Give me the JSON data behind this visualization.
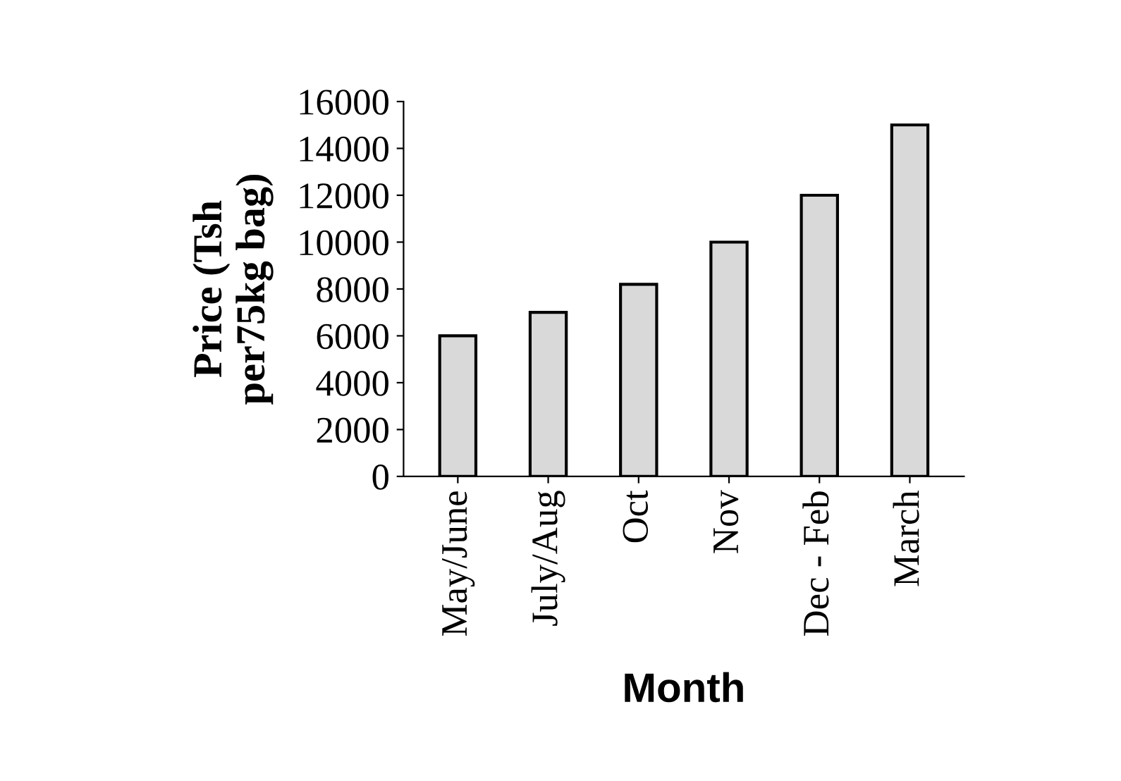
{
  "chart_data": {
    "type": "bar",
    "categories": [
      "May/June",
      "July/Aug",
      "Oct",
      "Nov",
      "Dec - Feb",
      "March"
    ],
    "values": [
      6000,
      7000,
      8200,
      10000,
      12000,
      15000
    ],
    "color": "#d9d9d9",
    "xlabel": "Month",
    "ylabel": "Price (Tsh\nper75kg bag)",
    "ylim": [
      0,
      16000
    ],
    "yticks": [
      0,
      2000,
      4000,
      6000,
      8000,
      10000,
      12000,
      14000,
      16000
    ],
    "grid": false,
    "legend": false
  }
}
